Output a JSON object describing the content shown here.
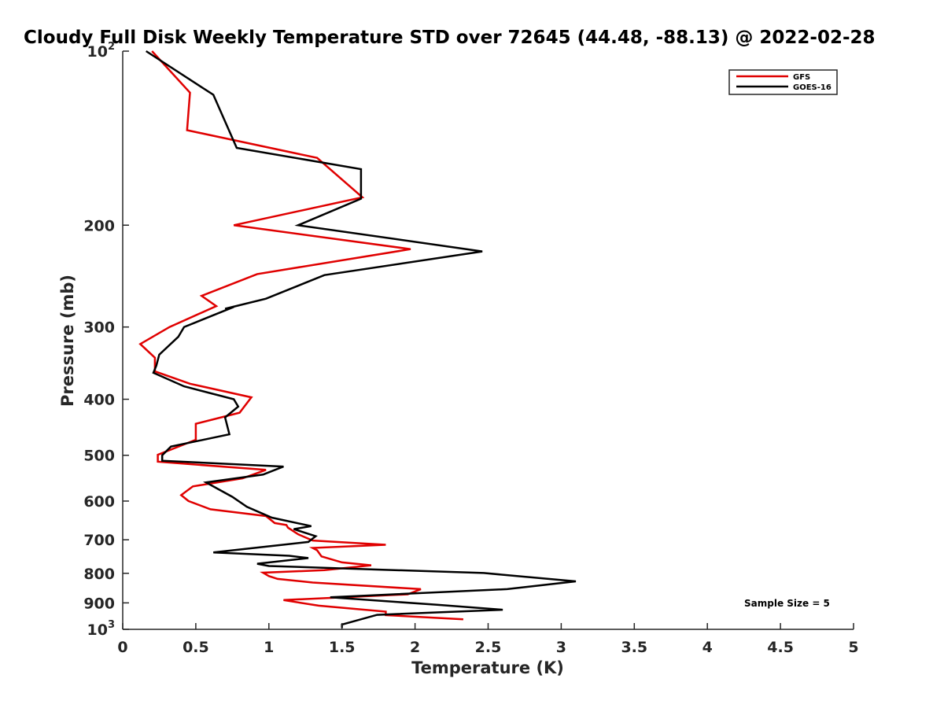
{
  "chart_data": {
    "type": "line",
    "title": "Cloudy Full Disk Weekly Temperature STD over 72645 (44.48, -88.13) @ 2022-02-28",
    "xlabel": "Temperature (K)",
    "ylabel": "Pressure (mb)",
    "xlim": [
      0,
      5
    ],
    "ylim": [
      100,
      1000
    ],
    "yscale": "log",
    "y_reversed": true,
    "grid": false,
    "legend_position": "top-right",
    "x_ticks": [
      {
        "value": 0,
        "label": "0"
      },
      {
        "value": 0.5,
        "label": "0.5"
      },
      {
        "value": 1,
        "label": "1"
      },
      {
        "value": 1.5,
        "label": "1.5"
      },
      {
        "value": 2,
        "label": "2"
      },
      {
        "value": 2.5,
        "label": "2.5"
      },
      {
        "value": 3,
        "label": "3"
      },
      {
        "value": 3.5,
        "label": "3.5"
      },
      {
        "value": 4,
        "label": "4"
      },
      {
        "value": 4.5,
        "label": "4.5"
      },
      {
        "value": 5,
        "label": "5"
      }
    ],
    "y_ticks": [
      {
        "value": 100,
        "base": "10",
        "exp": "2"
      },
      {
        "value": 200,
        "base": "200",
        "exp": ""
      },
      {
        "value": 300,
        "base": "300",
        "exp": ""
      },
      {
        "value": 400,
        "base": "400",
        "exp": ""
      },
      {
        "value": 500,
        "base": "500",
        "exp": ""
      },
      {
        "value": 600,
        "base": "600",
        "exp": ""
      },
      {
        "value": 700,
        "base": "700",
        "exp": ""
      },
      {
        "value": 800,
        "base": "800",
        "exp": ""
      },
      {
        "value": 900,
        "base": "900",
        "exp": ""
      },
      {
        "value": 1000,
        "base": "10",
        "exp": "3"
      }
    ],
    "annotation": "Sample Size = 5",
    "series": [
      {
        "name": "GFS",
        "color": "#e00000",
        "x": [
          0.2,
          0.46,
          0.44,
          1.33,
          1.64,
          0.76,
          1.97,
          0.92,
          0.54,
          0.64,
          0.32,
          0.12,
          0.22,
          0.22,
          0.46,
          0.88,
          0.8,
          0.5,
          0.5,
          0.24,
          0.24,
          0.98,
          0.82,
          0.48,
          0.4,
          0.45,
          0.6,
          0.98,
          1.04,
          1.12,
          1.13,
          1.2,
          1.3,
          1.8,
          1.3,
          1.33,
          1.36,
          1.5,
          1.7,
          1.38,
          0.96,
          1.0,
          1.06,
          1.3,
          2.04,
          1.95,
          1.1,
          1.34,
          1.8,
          1.8,
          2.33
        ],
        "y": [
          100,
          118,
          137,
          153,
          179,
          200,
          220,
          243,
          265,
          276,
          300,
          321,
          339,
          358,
          376,
          397,
          422,
          441,
          470,
          499,
          513,
          530,
          548,
          566,
          586,
          600,
          620,
          637,
          655,
          660,
          667,
          685,
          702,
          714,
          723,
          730,
          748,
          766,
          775,
          790,
          798,
          809,
          818,
          830,
          852,
          870,
          890,
          910,
          932,
          945,
          961
        ]
      },
      {
        "name": "GOES-16",
        "color": "#000000",
        "x": [
          0.16,
          0.62,
          0.78,
          1.63,
          1.63,
          1.63,
          1.2,
          2.46,
          1.38,
          0.98,
          0.7,
          0.76,
          0.42,
          0.38,
          0.25,
          0.23,
          0.21,
          0.42,
          0.76,
          0.79,
          0.7,
          0.73,
          0.33,
          0.27,
          0.27,
          1.1,
          0.96,
          0.57,
          0.75,
          0.85,
          1.02,
          1.29,
          1.17,
          1.32,
          1.27,
          1.12,
          0.62,
          1.14,
          1.27,
          0.92,
          1.0,
          2.47,
          3.1,
          2.63,
          1.42,
          2.15,
          2.6,
          1.74,
          1.5,
          1.5
        ],
        "y": [
          100,
          119,
          147,
          160,
          169,
          180,
          200,
          222,
          244,
          268,
          279,
          277,
          300,
          312,
          335,
          350,
          360,
          380,
          400,
          412,
          430,
          460,
          483,
          500,
          511,
          523,
          540,
          557,
          590,
          614,
          641,
          663,
          671,
          690,
          706,
          713,
          736,
          746,
          753,
          770,
          777,
          799,
          826,
          852,
          880,
          907,
          925,
          944,
          981,
          994
        ]
      }
    ]
  }
}
